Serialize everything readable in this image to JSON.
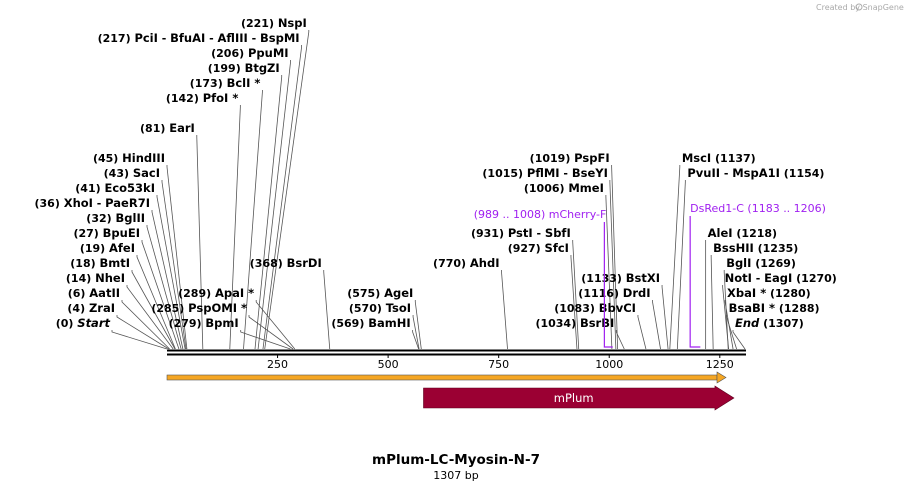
{
  "credit": {
    "text": "Created by",
    "brand": "SnapGene"
  },
  "title": "mPlum-LC-Myosin-N-7",
  "subtitle": "1307 bp",
  "sequence_length": 1307,
  "ruler_ticks": [
    250,
    500,
    750,
    1000,
    1250
  ],
  "colors": {
    "feature_text": "#a020f0",
    "mplum": "#9b0033",
    "orf": "#f5a623",
    "backbone": "#000000"
  },
  "sites": [
    {
      "pos": 0,
      "names": [
        "Start"
      ],
      "italic": true,
      "level": 0
    },
    {
      "pos": 4,
      "names": [
        "ZraI"
      ],
      "level": 1
    },
    {
      "pos": 6,
      "names": [
        "AatII"
      ],
      "level": 2
    },
    {
      "pos": 14,
      "names": [
        "NheI"
      ],
      "level": 3
    },
    {
      "pos": 18,
      "names": [
        "BmtI"
      ],
      "level": 4
    },
    {
      "pos": 19,
      "names": [
        "AfeI"
      ],
      "level": 5
    },
    {
      "pos": 27,
      "names": [
        "BpuEI"
      ],
      "level": 6
    },
    {
      "pos": 32,
      "names": [
        "BglII"
      ],
      "level": 7
    },
    {
      "pos": 36,
      "names": [
        "XhoI",
        "PaeR7I"
      ],
      "level": 8
    },
    {
      "pos": 41,
      "names": [
        "Eco53kI"
      ],
      "level": 9
    },
    {
      "pos": 43,
      "names": [
        "SacI"
      ],
      "level": 10
    },
    {
      "pos": 45,
      "names": [
        "HindIII"
      ],
      "level": 11
    },
    {
      "pos": 81,
      "names": [
        "EarI"
      ],
      "level": 13
    },
    {
      "pos": 142,
      "names": [
        "PfoI *"
      ],
      "level": 15
    },
    {
      "pos": 173,
      "names": [
        "BclI *"
      ],
      "level": 16
    },
    {
      "pos": 199,
      "names": [
        "BtgZI"
      ],
      "level": 17
    },
    {
      "pos": 206,
      "names": [
        "PpuMI"
      ],
      "level": 18
    },
    {
      "pos": 217,
      "names": [
        "PciI",
        "BfuAI",
        "AflIII",
        "BspMI"
      ],
      "level": 19
    },
    {
      "pos": 221,
      "names": [
        "NspI"
      ],
      "level": 20
    },
    {
      "pos": 279,
      "names": [
        "BpmI"
      ],
      "level": 0
    },
    {
      "pos": 285,
      "names": [
        "PspOMI *"
      ],
      "level": 1
    },
    {
      "pos": 289,
      "names": [
        "ApaI *"
      ],
      "level": 2
    },
    {
      "pos": 368,
      "names": [
        "BsrDI"
      ],
      "level": 4
    },
    {
      "pos": 569,
      "names": [
        "BamHI"
      ],
      "level": 0
    },
    {
      "pos": 570,
      "names": [
        "TsoI"
      ],
      "level": 1
    },
    {
      "pos": 575,
      "names": [
        "AgeI"
      ],
      "level": 2
    },
    {
      "pos": 770,
      "names": [
        "AhdI"
      ],
      "level": 4
    },
    {
      "pos": 927,
      "names": [
        "SfcI"
      ],
      "level": 5
    },
    {
      "pos": 931,
      "names": [
        "PstI",
        "SbfI"
      ],
      "level": 6
    },
    {
      "pos": 1006,
      "names": [
        "MmeI"
      ],
      "level": 9
    },
    {
      "pos": 1015,
      "names": [
        "PflMI",
        "BseYI"
      ],
      "level": 10
    },
    {
      "pos": 1019,
      "names": [
        "PspFI"
      ],
      "level": 11
    },
    {
      "pos": 1034,
      "names": [
        "BsrBI"
      ],
      "level": 0
    },
    {
      "pos": 1083,
      "names": [
        "BbvCI"
      ],
      "level": 1
    },
    {
      "pos": 1116,
      "names": [
        "DrdI"
      ],
      "level": 2
    },
    {
      "pos": 1133,
      "names": [
        "BstXI"
      ],
      "level": 3
    },
    {
      "pos": 1137,
      "names": [
        "MscI"
      ],
      "level": 11
    },
    {
      "pos": 1154,
      "names": [
        "PvuII",
        "MspA1I"
      ],
      "level": 10
    },
    {
      "pos": 1218,
      "names": [
        "AleI"
      ],
      "level": 6
    },
    {
      "pos": 1235,
      "names": [
        "BssHII"
      ],
      "level": 5
    },
    {
      "pos": 1269,
      "names": [
        "BglI"
      ],
      "level": 4
    },
    {
      "pos": 1270,
      "names": [
        "NotI",
        "EagI"
      ],
      "level": 3
    },
    {
      "pos": 1280,
      "names": [
        "XbaI *"
      ],
      "level": 2
    },
    {
      "pos": 1288,
      "names": [
        "BsaBI *"
      ],
      "level": 1
    },
    {
      "pos": 1307,
      "names": [
        "End"
      ],
      "italic": true,
      "level": 0
    }
  ],
  "primers": [
    {
      "name": "mCherry-F",
      "range": "(989 .. 1008)",
      "start": 989,
      "end": 1008
    },
    {
      "name": "DsRed1-C",
      "range": "(1183 .. 1206)",
      "start": 1183,
      "end": 1206
    }
  ],
  "features": [
    {
      "name": "mPlum",
      "start": 580,
      "end": 1282
    }
  ]
}
